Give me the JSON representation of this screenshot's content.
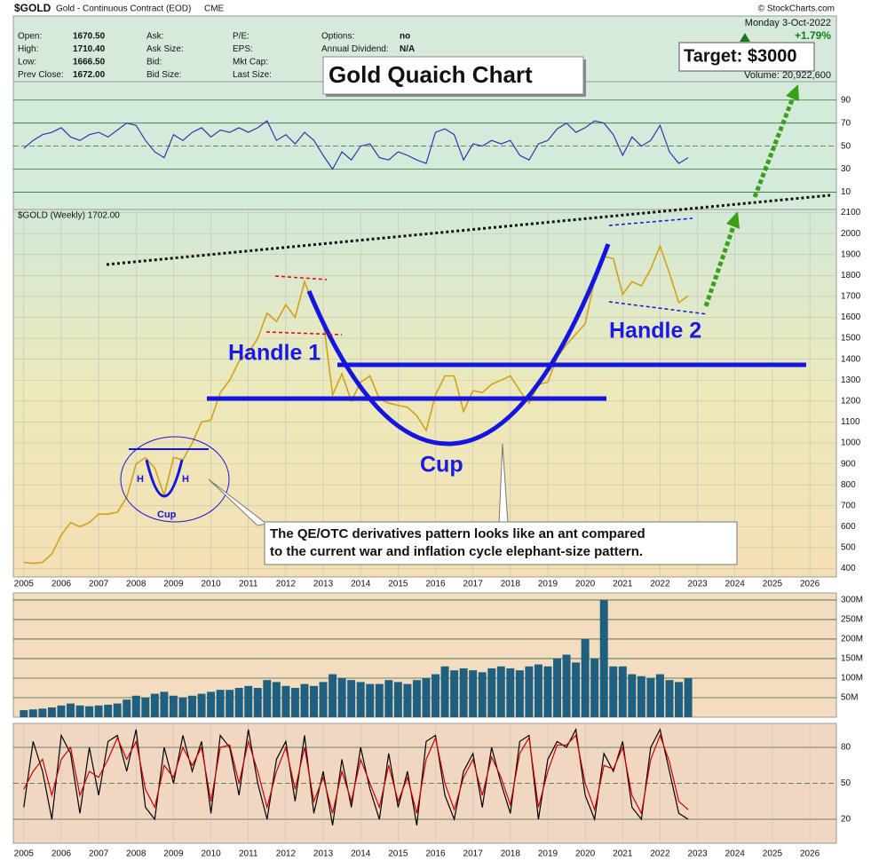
{
  "header": {
    "symbol": "$GOLD",
    "name": "Gold - Continuous Contract (EOD)",
    "exchange": "CME",
    "credit": "© StockCharts.com",
    "date": "Monday  3-Oct-2022",
    "change": "+1.79%",
    "volume": "Volume: 20,922,600",
    "fields": [
      {
        "label": "Open:",
        "value": "1670.50"
      },
      {
        "label": "High:",
        "value": "1710.40"
      },
      {
        "label": "Low:",
        "value": "1666.50"
      },
      {
        "label": "Prev Close:",
        "value": "1672.00"
      },
      {
        "label": "Ask:"
      },
      {
        "label": "Ask Size:"
      },
      {
        "label": "Bid:"
      },
      {
        "label": "Bid Size:"
      },
      {
        "label": "P/E:"
      },
      {
        "label": "EPS:"
      },
      {
        "label": "Mkt Cap:"
      },
      {
        "label": "Last Size:"
      },
      {
        "label": "Options:",
        "value": "no"
      },
      {
        "label": "Annual Dividend:",
        "value": "N/A"
      }
    ]
  },
  "annotations": {
    "title": "Gold Quaich Chart",
    "target": "Target: $3000",
    "handle1": "Handle 1",
    "handle2": "Handle 2",
    "cup": "Cup",
    "small_h": "H",
    "small_cup": "Cup",
    "note": [
      "The QE/OTC derivatives pattern looks like an ant compared",
      "to the current war and inflation cycle elephant-size pattern."
    ]
  },
  "chart_data": [
    {
      "type": "line",
      "xlim": [
        2004.72,
        2026.71
      ],
      "ylim": [
        -5,
        106
      ],
      "yticks": [
        10,
        30,
        50,
        70,
        90
      ],
      "grid": true,
      "x": [
        2005,
        2005.25,
        2005.5,
        2005.75,
        2006,
        2006.25,
        2006.5,
        2006.75,
        2007,
        2007.25,
        2007.5,
        2007.75,
        2008,
        2008.25,
        2008.5,
        2008.75,
        2009,
        2009.25,
        2009.5,
        2009.75,
        2010,
        2010.25,
        2010.5,
        2010.75,
        2011,
        2011.25,
        2011.5,
        2011.75,
        2012,
        2012.25,
        2012.5,
        2012.75,
        2013,
        2013.25,
        2013.5,
        2013.75,
        2014,
        2014.25,
        2014.5,
        2014.75,
        2015,
        2015.25,
        2015.5,
        2015.75,
        2016,
        2016.25,
        2016.5,
        2016.75,
        2017,
        2017.25,
        2017.5,
        2017.75,
        2018,
        2018.25,
        2018.5,
        2018.75,
        2019,
        2019.25,
        2019.5,
        2019.75,
        2020,
        2020.25,
        2020.5,
        2020.75,
        2021,
        2021.25,
        2021.5,
        2021.75,
        2022,
        2022.25,
        2022.5,
        2022.75
      ],
      "series": [
        {
          "color": "#3535aa",
          "values": [
            48,
            55,
            60,
            62,
            66,
            58,
            55,
            60,
            62,
            58,
            64,
            70,
            68,
            55,
            45,
            40,
            60,
            55,
            62,
            66,
            58,
            64,
            62,
            66,
            62,
            66,
            72,
            55,
            60,
            52,
            62,
            55,
            42,
            30,
            45,
            38,
            50,
            52,
            40,
            38,
            45,
            42,
            38,
            35,
            62,
            65,
            60,
            38,
            52,
            50,
            55,
            52,
            55,
            42,
            38,
            52,
            55,
            65,
            70,
            62,
            66,
            72,
            70,
            60,
            42,
            58,
            50,
            55,
            68,
            45,
            35,
            40
          ]
        }
      ]
    },
    {
      "type": "line",
      "legend": "$GOLD (Weekly) 1702.00",
      "xlim": [
        2004.72,
        2026.71
      ],
      "xticks": [
        2005,
        2006,
        2007,
        2008,
        2009,
        2010,
        2011,
        2012,
        2013,
        2014,
        2015,
        2016,
        2017,
        2018,
        2019,
        2020,
        2021,
        2022,
        2023,
        2024,
        2025,
        2026
      ],
      "ylim": [
        360,
        2115
      ],
      "yticks": [
        400,
        500,
        600,
        700,
        800,
        900,
        1000,
        1100,
        1200,
        1300,
        1400,
        1500,
        1600,
        1700,
        1800,
        1900,
        2000,
        2100
      ],
      "grid": true,
      "x": [
        2005,
        2005.25,
        2005.5,
        2005.75,
        2006,
        2006.25,
        2006.5,
        2006.75,
        2007,
        2007.25,
        2007.5,
        2007.75,
        2008,
        2008.25,
        2008.5,
        2008.75,
        2009,
        2009.25,
        2009.5,
        2009.75,
        2010,
        2010.25,
        2010.5,
        2010.75,
        2011,
        2011.25,
        2011.5,
        2011.75,
        2012,
        2012.25,
        2012.5,
        2012.75,
        2013,
        2013.25,
        2013.5,
        2013.75,
        2014,
        2014.25,
        2014.5,
        2014.75,
        2015,
        2015.25,
        2015.5,
        2015.75,
        2016,
        2016.25,
        2016.5,
        2016.75,
        2017,
        2017.25,
        2017.5,
        2017.75,
        2018,
        2018.25,
        2018.5,
        2018.75,
        2019,
        2019.25,
        2019.5,
        2019.75,
        2020,
        2020.25,
        2020.5,
        2020.75,
        2021,
        2021.25,
        2021.5,
        2021.75,
        2022,
        2022.25,
        2022.5,
        2022.75
      ],
      "series": [
        {
          "color": "#d4a017",
          "values": [
            430,
            425,
            430,
            470,
            560,
            620,
            600,
            620,
            660,
            660,
            670,
            740,
            900,
            930,
            880,
            750,
            930,
            920,
            1000,
            1100,
            1110,
            1240,
            1300,
            1390,
            1430,
            1500,
            1620,
            1580,
            1660,
            1600,
            1770,
            1660,
            1590,
            1230,
            1330,
            1200,
            1290,
            1320,
            1210,
            1190,
            1180,
            1170,
            1130,
            1060,
            1230,
            1320,
            1320,
            1150,
            1250,
            1240,
            1280,
            1300,
            1320,
            1250,
            1190,
            1280,
            1290,
            1410,
            1470,
            1520,
            1570,
            1780,
            1890,
            1880,
            1710,
            1770,
            1750,
            1830,
            1940,
            1810,
            1670,
            1702
          ]
        }
      ]
    },
    {
      "type": "bar",
      "xlim": [
        2004.72,
        2026.71
      ],
      "ylim": [
        0,
        318000000
      ],
      "yticks": [
        {
          "value": 50000000,
          "label": "50M"
        },
        {
          "value": 100000000,
          "label": "100M"
        },
        {
          "value": 150000000,
          "label": "150M"
        },
        {
          "value": 200000000,
          "label": "200M"
        },
        {
          "value": 250000000,
          "label": "250M"
        },
        {
          "value": 300000000,
          "label": "300M"
        }
      ],
      "grid": true,
      "color": "#1f5f80",
      "x": [
        2005,
        2005.25,
        2005.5,
        2005.75,
        2006,
        2006.25,
        2006.5,
        2006.75,
        2007,
        2007.25,
        2007.5,
        2007.75,
        2008,
        2008.25,
        2008.5,
        2008.75,
        2009,
        2009.25,
        2009.5,
        2009.75,
        2010,
        2010.25,
        2010.5,
        2010.75,
        2011,
        2011.25,
        2011.5,
        2011.75,
        2012,
        2012.25,
        2012.5,
        2012.75,
        2013,
        2013.25,
        2013.5,
        2013.75,
        2014,
        2014.25,
        2014.5,
        2014.75,
        2015,
        2015.25,
        2015.5,
        2015.75,
        2016,
        2016.25,
        2016.5,
        2016.75,
        2017,
        2017.25,
        2017.5,
        2017.75,
        2018,
        2018.25,
        2018.5,
        2018.75,
        2019,
        2019.25,
        2019.5,
        2019.75,
        2020,
        2020.25,
        2020.5,
        2020.75,
        2021,
        2021.25,
        2021.5,
        2021.75,
        2022,
        2022.25,
        2022.5,
        2022.75
      ],
      "values": [
        18000000,
        20000000,
        22000000,
        25000000,
        30000000,
        35000000,
        30000000,
        28000000,
        30000000,
        32000000,
        35000000,
        45000000,
        55000000,
        50000000,
        60000000,
        65000000,
        55000000,
        50000000,
        55000000,
        60000000,
        65000000,
        70000000,
        70000000,
        75000000,
        80000000,
        75000000,
        95000000,
        90000000,
        80000000,
        75000000,
        85000000,
        80000000,
        90000000,
        110000000,
        100000000,
        95000000,
        90000000,
        85000000,
        85000000,
        95000000,
        90000000,
        85000000,
        95000000,
        100000000,
        110000000,
        130000000,
        120000000,
        125000000,
        120000000,
        115000000,
        125000000,
        130000000,
        125000000,
        120000000,
        130000000,
        135000000,
        130000000,
        150000000,
        160000000,
        140000000,
        200000000,
        150000000,
        300000000,
        130000000,
        130000000,
        110000000,
        105000000,
        100000000,
        110000000,
        95000000,
        90000000,
        100000000
      ]
    },
    {
      "type": "line",
      "xlim": [
        2004.72,
        2026.71
      ],
      "xticks": [
        2005,
        2006,
        2007,
        2008,
        2009,
        2010,
        2011,
        2012,
        2013,
        2014,
        2015,
        2016,
        2017,
        2018,
        2019,
        2020,
        2021,
        2022,
        2023,
        2024,
        2025,
        2026
      ],
      "ylim": [
        0,
        100
      ],
      "yticks": [
        20,
        50,
        80
      ],
      "grid": true,
      "x": [
        2005,
        2005.25,
        2005.5,
        2005.75,
        2006,
        2006.25,
        2006.5,
        2006.75,
        2007,
        2007.25,
        2007.5,
        2007.75,
        2008,
        2008.25,
        2008.5,
        2008.75,
        2009,
        2009.25,
        2009.5,
        2009.75,
        2010,
        2010.25,
        2010.5,
        2010.75,
        2011,
        2011.25,
        2011.5,
        2011.75,
        2012,
        2012.25,
        2012.5,
        2012.75,
        2013,
        2013.25,
        2013.5,
        2013.75,
        2014,
        2014.25,
        2014.5,
        2014.75,
        2015,
        2015.25,
        2015.5,
        2015.75,
        2016,
        2016.25,
        2016.5,
        2016.75,
        2017,
        2017.25,
        2017.5,
        2017.75,
        2018,
        2018.25,
        2018.5,
        2018.75,
        2019,
        2019.25,
        2019.5,
        2019.75,
        2020,
        2020.25,
        2020.5,
        2020.75,
        2021,
        2021.25,
        2021.5,
        2021.75,
        2022,
        2022.25,
        2022.5,
        2022.75
      ],
      "series": [
        {
          "color": "#000000",
          "values": [
            30,
            85,
            60,
            20,
            90,
            75,
            25,
            80,
            40,
            85,
            90,
            60,
            95,
            30,
            20,
            80,
            50,
            90,
            60,
            85,
            25,
            90,
            80,
            40,
            95,
            50,
            20,
            70,
            85,
            35,
            90,
            25,
            60,
            15,
            70,
            30,
            80,
            45,
            20,
            75,
            30,
            60,
            15,
            85,
            90,
            40,
            20,
            60,
            75,
            30,
            80,
            50,
            25,
            85,
            90,
            20,
            70,
            85,
            80,
            95,
            40,
            20,
            75,
            60,
            85,
            30,
            20,
            80,
            95,
            60,
            25,
            20
          ]
        },
        {
          "color": "#cc0000",
          "values": [
            45,
            60,
            70,
            40,
            70,
            80,
            40,
            60,
            55,
            70,
            88,
            70,
            85,
            45,
            30,
            65,
            55,
            80,
            65,
            80,
            35,
            80,
            82,
            50,
            85,
            60,
            30,
            60,
            80,
            45,
            80,
            35,
            55,
            25,
            60,
            35,
            70,
            50,
            30,
            65,
            35,
            55,
            25,
            70,
            88,
            50,
            28,
            55,
            70,
            40,
            72,
            55,
            32,
            75,
            88,
            30,
            60,
            82,
            82,
            90,
            50,
            28,
            65,
            62,
            80,
            40,
            25,
            70,
            90,
            68,
            35,
            28
          ]
        }
      ]
    }
  ]
}
